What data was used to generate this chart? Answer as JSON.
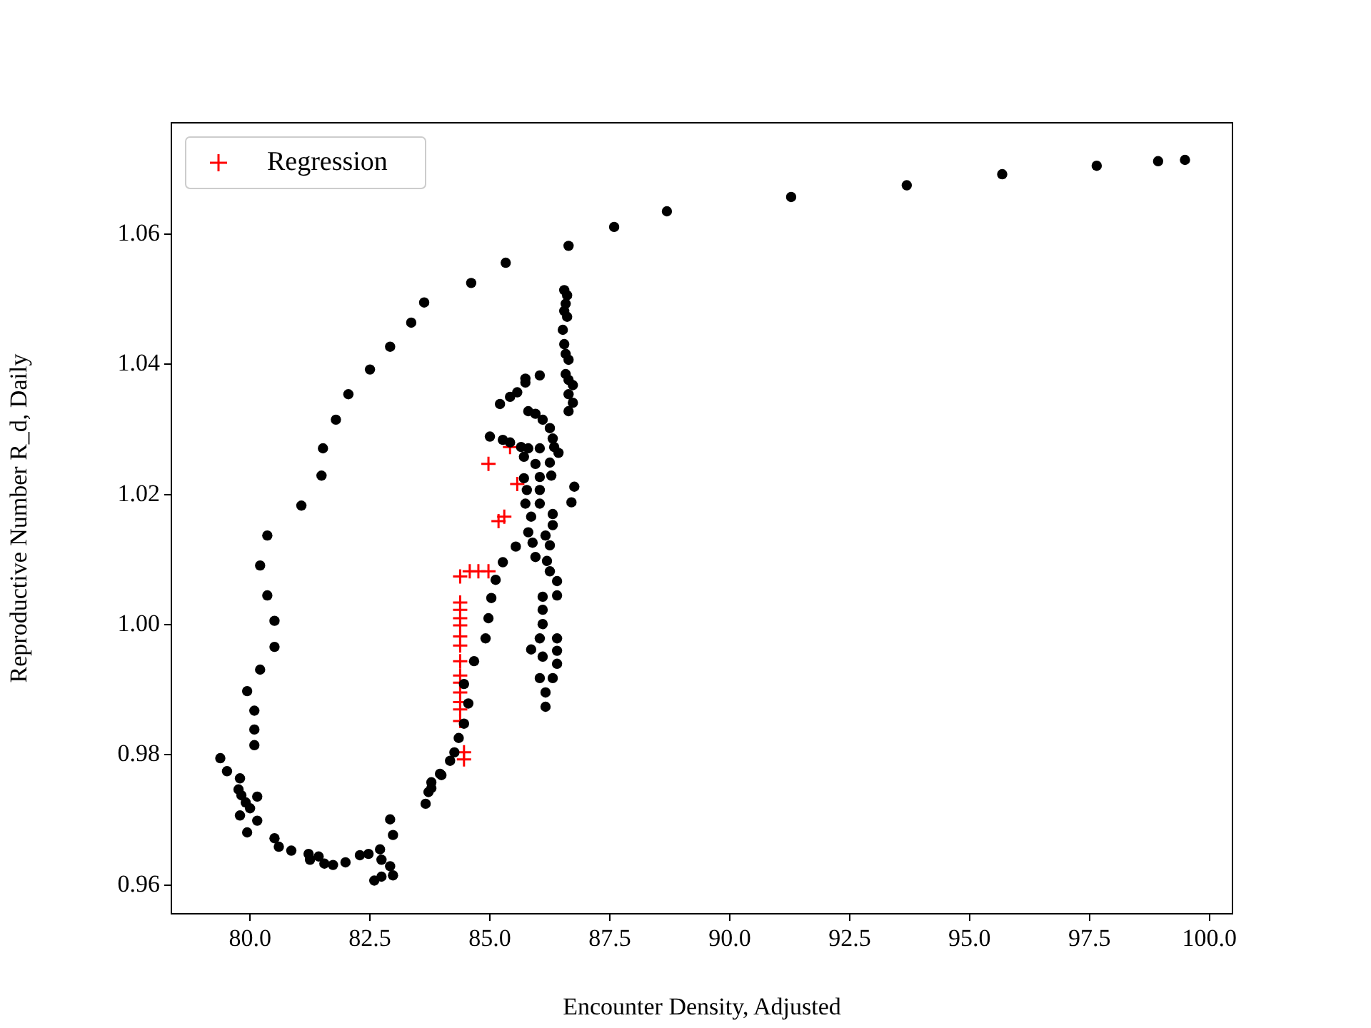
{
  "chart_data": {
    "type": "scatter",
    "xlabel": "Encounter Density, Adjusted",
    "ylabel": "Reproductive Number R_d, Daily",
    "xlim": [
      78.36,
      100.48
    ],
    "ylim": [
      0.9556,
      1.0771
    ],
    "xticks": [
      {
        "value": 80,
        "label": "80.0"
      },
      {
        "value": 82.5,
        "label": "82.5"
      },
      {
        "value": 85,
        "label": "85.0"
      },
      {
        "value": 87.5,
        "label": "87.5"
      },
      {
        "value": 90,
        "label": "90.0"
      },
      {
        "value": 92.5,
        "label": "92.5"
      },
      {
        "value": 95,
        "label": "95.0"
      },
      {
        "value": 97.5,
        "label": "97.5"
      },
      {
        "value": 100,
        "label": "100.0"
      }
    ],
    "yticks": [
      {
        "value": 0.96,
        "label": "0.96"
      },
      {
        "value": 0.98,
        "label": "0.98"
      },
      {
        "value": 1.0,
        "label": "1.00"
      },
      {
        "value": 1.02,
        "label": "1.02"
      },
      {
        "value": 1.04,
        "label": "1.04"
      },
      {
        "value": 1.06,
        "label": "1.06"
      }
    ],
    "grid": false,
    "legend": "top left",
    "series": [
      {
        "color": "#000000",
        "marker": "circle",
        "x": [
          99.49,
          98.93,
          97.65,
          95.68,
          93.69,
          91.28,
          88.69,
          87.59,
          86.64,
          85.33,
          84.61,
          83.63,
          83.36,
          82.92,
          82.5,
          82.05,
          81.79,
          81.52,
          81.49,
          81.07,
          80.36,
          80.21,
          80.36,
          80.51,
          80.51,
          80.21,
          79.94,
          80.09,
          80.09,
          80.09,
          79.38,
          79.52,
          79.79,
          79.76,
          79.82,
          80.15,
          79.91,
          80.0,
          79.79,
          80.15,
          79.94,
          80.51,
          80.6,
          80.86,
          81.22,
          81.25,
          81.43,
          81.55,
          81.73,
          81.99,
          82.29,
          82.47,
          82.71,
          82.74,
          82.92,
          82.59,
          82.74,
          82.98,
          82.92,
          82.98,
          83.66,
          83.72,
          83.78,
          83.96,
          83.78,
          83.99,
          84.17,
          84.26,
          84.35,
          84.46,
          84.55,
          84.46,
          84.67,
          84.91,
          84.97,
          85.03,
          85.12,
          85.27,
          85.54,
          85.0,
          85.27,
          85.42,
          85.65,
          85.8,
          86.04,
          85.21,
          85.42,
          85.57,
          85.74,
          85.74,
          86.04,
          85.8,
          85.95,
          86.1,
          86.25,
          86.31,
          86.34,
          86.43,
          85.71,
          85.95,
          86.25,
          85.71,
          86.04,
          86.28,
          85.77,
          86.04,
          85.74,
          86.04,
          85.86,
          86.31,
          86.31,
          86.76,
          86.7,
          85.8,
          85.89,
          86.16,
          86.25,
          85.95,
          86.19,
          86.25,
          86.4,
          86.4,
          86.1,
          86.1,
          86.1,
          86.04,
          86.4,
          85.86,
          86.4,
          86.1,
          86.4,
          86.04,
          86.31,
          86.16,
          86.16,
          86.55,
          86.61,
          86.58,
          86.55,
          86.61,
          86.52,
          86.55,
          86.58,
          86.64,
          86.58,
          86.64,
          86.73,
          86.64,
          86.73,
          86.64
        ],
        "values": [
          1.0714,
          1.0712,
          1.0705,
          1.0692,
          1.0675,
          1.0657,
          1.0635,
          1.0611,
          1.0582,
          1.0556,
          1.0525,
          1.0495,
          1.0464,
          1.0427,
          1.0392,
          1.0354,
          1.0315,
          1.0271,
          1.0229,
          1.0183,
          1.0137,
          1.0091,
          1.0045,
          1.0006,
          0.9966,
          0.9931,
          0.9898,
          0.9868,
          0.9839,
          0.9815,
          0.9795,
          0.9775,
          0.9764,
          0.9747,
          0.9738,
          0.9736,
          0.9727,
          0.9718,
          0.9707,
          0.9699,
          0.9681,
          0.9672,
          0.9659,
          0.9653,
          0.9648,
          0.9639,
          0.9644,
          0.9633,
          0.9631,
          0.9635,
          0.9646,
          0.9648,
          0.9655,
          0.9639,
          0.9629,
          0.9607,
          0.9613,
          0.9615,
          0.9701,
          0.9677,
          0.9725,
          0.9743,
          0.9758,
          0.9771,
          0.9749,
          0.9769,
          0.9791,
          0.9804,
          0.9826,
          0.9848,
          0.9879,
          0.9909,
          0.9944,
          0.9979,
          1.001,
          1.0041,
          1.0069,
          1.0096,
          1.012,
          1.0289,
          1.0284,
          1.028,
          1.0273,
          1.0271,
          1.0271,
          1.0339,
          1.035,
          1.0357,
          1.0372,
          1.0378,
          1.0383,
          1.0328,
          1.0324,
          1.0315,
          1.0302,
          1.0286,
          1.0273,
          1.0264,
          1.0258,
          1.0247,
          1.0249,
          1.0225,
          1.0227,
          1.0229,
          1.0207,
          1.0207,
          1.0186,
          1.0186,
          1.0166,
          1.017,
          1.0153,
          1.0212,
          1.0188,
          1.0142,
          1.0126,
          1.0137,
          1.0122,
          1.0104,
          1.0098,
          1.0082,
          1.0067,
          1.0045,
          1.0043,
          1.0023,
          1.0001,
          0.9979,
          0.9979,
          0.9962,
          0.996,
          0.9951,
          0.994,
          0.9918,
          0.9918,
          0.9896,
          0.9874,
          1.0514,
          1.0506,
          1.0493,
          1.0482,
          1.0473,
          1.0453,
          1.0431,
          1.0416,
          1.0407,
          1.0385,
          1.0376,
          1.0368,
          1.0354,
          1.0341,
          1.0328
        ]
      },
      {
        "name": "Regression",
        "color": "#ff0000",
        "marker": "cross",
        "x": [
          84.38,
          84.58,
          84.76,
          84.97,
          84.38,
          84.38,
          84.38,
          84.38,
          84.38,
          84.38,
          84.38,
          84.38,
          84.38,
          84.38,
          84.38,
          84.38,
          84.38,
          84.46,
          84.46,
          84.97,
          85.42,
          85.57,
          85.18,
          85.3
        ],
        "values": [
          1.0074,
          1.0082,
          1.0082,
          1.0082,
          1.0034,
          1.0023,
          1.001,
          0.9999,
          0.9982,
          0.9968,
          0.9944,
          0.9922,
          0.9911,
          0.9896,
          0.9881,
          0.987,
          0.9852,
          0.9804,
          0.9793,
          1.0247,
          1.0273,
          1.0216,
          1.0159,
          1.0166
        ]
      }
    ]
  }
}
